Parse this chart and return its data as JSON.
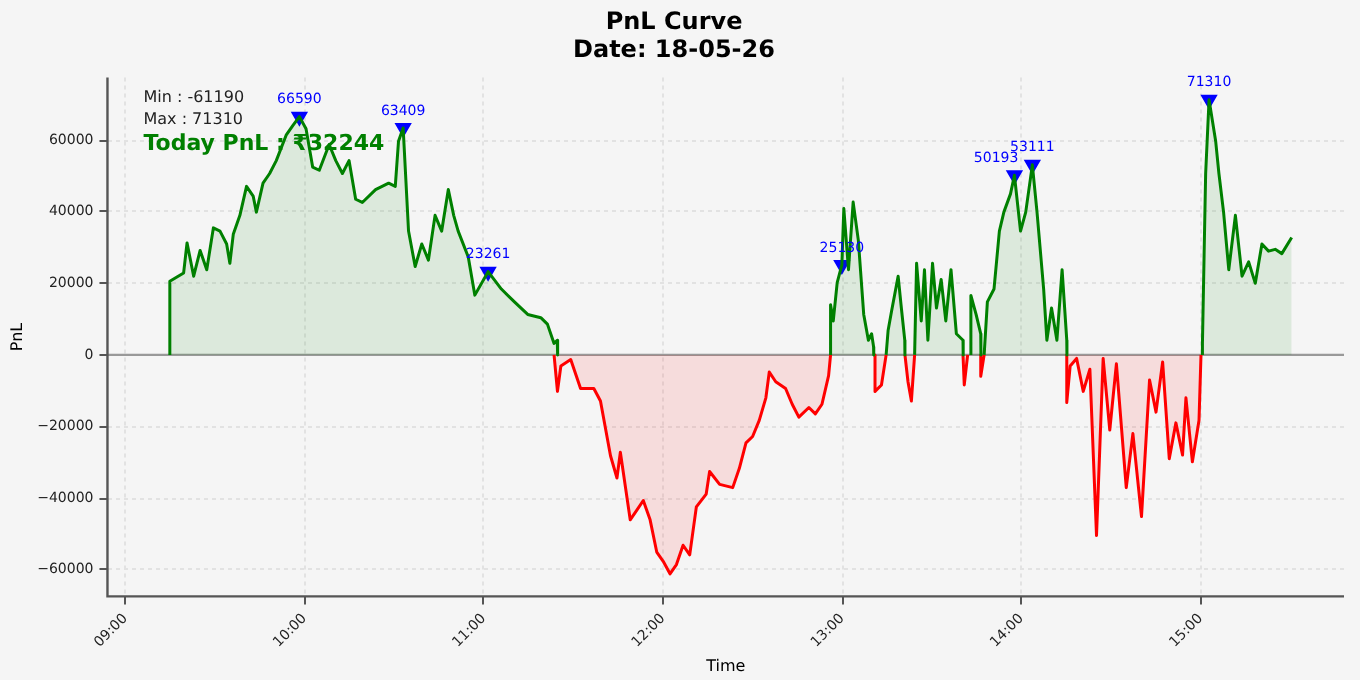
{
  "chart_data": {
    "type": "area",
    "title": "PnL Curve",
    "subtitle": "Date: 18-05-26",
    "xlabel": "Time",
    "ylabel": "PnL",
    "xlim": [
      8.9,
      15.8
    ],
    "xticks": [
      {
        "value": 9,
        "label": "09:00"
      },
      {
        "value": 10,
        "label": "10:00"
      },
      {
        "value": 11,
        "label": "11:00"
      },
      {
        "value": 12,
        "label": "12:00"
      },
      {
        "value": 13,
        "label": "13:00"
      },
      {
        "value": 14,
        "label": "14:00"
      },
      {
        "value": 15,
        "label": "15:00"
      }
    ],
    "ylim": [
      -67500,
      77500
    ],
    "yticks": [
      -60000,
      -40000,
      -20000,
      0,
      20000,
      40000,
      60000
    ],
    "grid": true,
    "legend": false,
    "line_style": "solid",
    "ref_lines": [
      {
        "axis": "y",
        "value": 0,
        "color": "#999999"
      }
    ],
    "annotations": [
      "Min : -61190",
      "Max : 71310",
      "Today PnL : ₹32244"
    ],
    "series": [
      {
        "type": "area",
        "color": "#008000",
        "x": [
          9.248,
          9.248,
          9.325,
          9.344,
          9.381,
          9.417,
          9.454,
          9.491,
          9.528,
          9.565,
          9.583,
          9.602,
          9.639,
          9.676,
          9.713,
          9.731,
          9.768,
          9.805,
          9.842,
          9.897,
          9.934,
          9.971,
          10.008,
          10.045,
          10.082,
          10.137,
          10.174,
          10.211,
          10.248,
          10.285,
          10.322,
          10.396,
          10.469,
          10.506,
          10.524,
          10.55,
          10.58,
          10.617,
          10.654,
          10.691,
          10.728,
          10.765,
          10.802,
          10.832,
          10.857,
          10.913,
          10.95,
          11.024,
          11.098,
          11.171,
          11.245,
          11.318,
          11.355,
          11.392,
          11.41,
          11.412,
          11.6,
          12.935,
          12.935,
          12.95,
          12.972,
          12.998,
          13.009,
          13.035,
          13.061,
          13.09,
          13.12,
          13.146,
          13.164,
          13.175,
          13.176,
          13.2,
          13.245,
          13.256,
          13.275,
          13.312,
          13.33,
          13.349,
          13.35,
          13.37,
          13.404,
          13.415,
          13.441,
          13.459,
          13.478,
          13.504,
          13.526,
          13.552,
          13.578,
          13.607,
          13.637,
          13.674,
          13.675,
          13.7,
          13.718,
          13.718,
          13.747,
          13.773,
          13.774,
          13.78,
          13.792,
          13.81,
          13.847,
          13.877,
          13.902,
          13.939,
          13.961,
          13.995,
          14.024,
          14.061,
          14.087,
          14.124,
          14.142,
          14.168,
          14.198,
          14.227,
          14.253,
          14.254,
          14.27,
          15.01,
          15.01,
          15.028,
          15.047,
          15.084,
          15.102,
          15.128,
          15.157,
          15.194,
          15.231,
          15.268,
          15.305,
          15.342,
          15.379,
          15.416,
          15.453,
          15.508
        ],
        "values": [
          0,
          20600,
          22900,
          31300,
          22000,
          29200,
          23800,
          35500,
          34600,
          31000,
          25600,
          33700,
          39000,
          47100,
          44400,
          39900,
          48000,
          50700,
          54300,
          61400,
          64100,
          66590,
          63200,
          52500,
          51600,
          58800,
          54300,
          50700,
          54300,
          43500,
          42600,
          46200,
          48000,
          47100,
          59700,
          63409,
          34600,
          24700,
          31000,
          26500,
          39000,
          34600,
          46200,
          39000,
          34600,
          27400,
          16700,
          23261,
          18400,
          14800,
          11300,
          10400,
          8600,
          3200,
          4100,
          0,
          null,
          0,
          14000,
          9500,
          20200,
          25130,
          40900,
          23800,
          42700,
          32000,
          11300,
          4100,
          5900,
          2300,
          0,
          null,
          0,
          6800,
          12100,
          22000,
          13100,
          4100,
          0,
          null,
          0,
          25600,
          9500,
          23800,
          4100,
          25600,
          13100,
          21100,
          9500,
          23800,
          5900,
          4100,
          0,
          null,
          0,
          16600,
          11300,
          5900,
          0,
          null,
          0,
          14800,
          18400,
          34600,
          39900,
          45000,
          50193,
          34600,
          39900,
          53111,
          39900,
          18400,
          4100,
          13100,
          4100,
          23800,
          4100,
          0,
          null,
          0,
          3200,
          50700,
          71310,
          59700,
          50700,
          39900,
          23800,
          39000,
          22000,
          26000,
          20000,
          31000,
          29000,
          29500,
          28300,
          32800
        ]
      },
      {
        "type": "area",
        "color": "#ff0000",
        "x": [
          11.392,
          11.411,
          11.43,
          11.485,
          11.54,
          11.614,
          11.651,
          11.707,
          11.743,
          11.762,
          11.817,
          11.854,
          11.89,
          11.928,
          11.965,
          12.001,
          12.039,
          12.075,
          12.112,
          12.149,
          12.186,
          12.241,
          12.26,
          12.316,
          12.389,
          12.426,
          12.463,
          12.5,
          12.537,
          12.574,
          12.593,
          12.629,
          12.684,
          12.721,
          12.758,
          12.814,
          12.85,
          12.887,
          12.924,
          12.935,
          12.95,
          13.183,
          13.183,
          13.219,
          13.245,
          13.3,
          13.35,
          13.367,
          13.386,
          13.404,
          13.5,
          13.674,
          13.681,
          13.7,
          13.76,
          13.773,
          13.773,
          13.792,
          14.0,
          14.253,
          14.253,
          14.272,
          14.308,
          14.345,
          14.382,
          14.419,
          14.456,
          14.493,
          14.53,
          14.585,
          14.622,
          14.67,
          14.715,
          14.751,
          14.788,
          14.825,
          14.862,
          14.899,
          14.918,
          14.954,
          14.991,
          15.002
        ],
        "values": [
          0,
          -10200,
          -3100,
          -1300,
          -9400,
          -9400,
          -12900,
          -28200,
          -34400,
          -27200,
          -46100,
          -43400,
          -40700,
          -46100,
          -55100,
          -57700,
          -61190,
          -58600,
          -53200,
          -55900,
          -42500,
          -38900,
          -32600,
          -36200,
          -37100,
          -31700,
          -24600,
          -22800,
          -18300,
          -12000,
          -4800,
          -7500,
          -9400,
          -13800,
          -17400,
          -14700,
          -16500,
          -13800,
          -5800,
          0,
          null,
          0,
          -10200,
          -8400,
          0,
          null,
          0,
          -7500,
          -12900,
          0,
          null,
          0,
          -8400,
          0,
          null,
          0,
          -6000,
          0,
          null,
          0,
          -13300,
          -3100,
          -1000,
          -10200,
          -4000,
          -50500,
          -1000,
          -21000,
          -2500,
          -37100,
          -22000,
          -45200,
          -7000,
          -16000,
          -2000,
          -29000,
          -19000,
          -28000,
          -12000,
          -29900,
          -18300,
          0
        ]
      },
      {
        "type": "scatter",
        "color": "#0000ff",
        "marker": "triangle",
        "data_labels": true,
        "x": [
          9.971,
          10.55,
          11.024,
          12.998,
          13.961,
          14.061,
          15.047
        ],
        "values": [
          66590,
          63409,
          23261,
          25130,
          50193,
          53111,
          71310
        ]
      }
    ]
  }
}
